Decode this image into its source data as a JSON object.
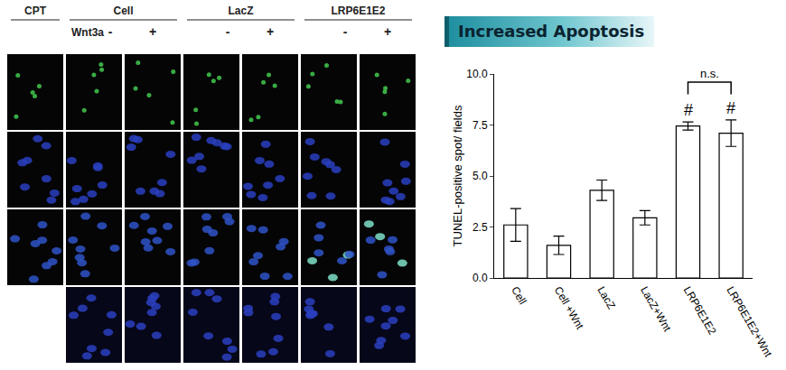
{
  "chart_data": {
    "type": "bar",
    "title": "Increased Apoptosis",
    "categories": [
      "Cell",
      "Cell +Wnt",
      "LacZ",
      "LacZ+Wnt",
      "LRP6E1E2",
      "LRP6E1E2+Wnt"
    ],
    "values": [
      2.6,
      1.6,
      4.3,
      2.95,
      7.45,
      7.1
    ],
    "errors": [
      0.8,
      0.45,
      0.5,
      0.35,
      0.2,
      0.65
    ],
    "color": "#ffffff",
    "y_label": "TUNEL-positive spot/ fields",
    "ylim": [
      0,
      10
    ],
    "yticks": [
      {
        "value": 0,
        "label": "0.0"
      },
      2.5,
      {
        "value": 5,
        "label": "5.0"
      },
      7.5,
      {
        "value": 10,
        "label": "10.0"
      }
    ],
    "grid": false,
    "annotations": [
      {
        "text": "#",
        "category": "LRP6E1E2"
      },
      {
        "text": "#",
        "category": "LRP6E1E2+Wnt"
      }
    ],
    "bracket": {
      "text": "n.s.",
      "from": "LRP6E1E2",
      "to": "LRP6E1E2+Wnt"
    }
  },
  "panels": {
    "columns": [
      {
        "label": "CPT",
        "span": 1
      },
      {
        "label": "Cell",
        "span": 2
      },
      {
        "label": "LacZ",
        "span": 2
      },
      {
        "label": "LRP6E1E2",
        "span": 2
      }
    ],
    "treatment_label": "Wnt3a",
    "signs": [
      "-",
      "+",
      "-",
      "+",
      "-",
      "+"
    ]
  }
}
